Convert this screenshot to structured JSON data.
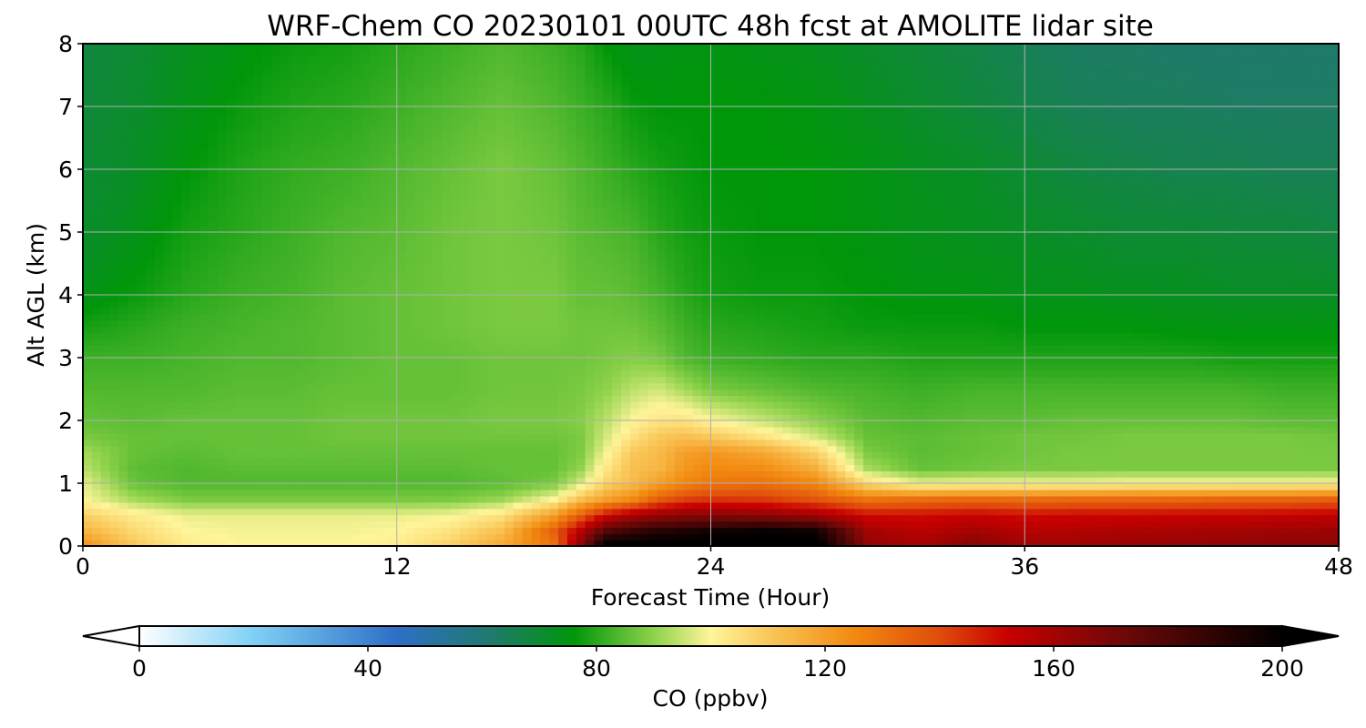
{
  "chart_data": {
    "type": "heatmap",
    "title": "WRF-Chem CO  20230101 00UTC 48h fcst at AMOLITE lidar site",
    "xlabel": "Forecast Time (Hour)",
    "ylabel": "Alt AGL (km)",
    "xlim": [
      0,
      48
    ],
    "ylim": [
      0,
      8
    ],
    "x_ticks": [
      "0",
      "12",
      "24",
      "36",
      "48"
    ],
    "y_ticks": [
      "0",
      "1",
      "2",
      "3",
      "4",
      "5",
      "6",
      "7",
      "8"
    ],
    "grid": true,
    "colorbar": {
      "label": "CO  (ppbv)",
      "range": [
        0,
        200
      ],
      "extend": "both",
      "ticks": [
        "0",
        "40",
        "80",
        "120",
        "160",
        "200"
      ],
      "stops": [
        {
          "value": 0,
          "color": "#ffffff"
        },
        {
          "value": 20,
          "color": "#7fd0f5"
        },
        {
          "value": 45,
          "color": "#2e6fc7"
        },
        {
          "value": 62,
          "color": "#1f7a6a"
        },
        {
          "value": 76,
          "color": "#00960a"
        },
        {
          "value": 90,
          "color": "#8ed24a"
        },
        {
          "value": 100,
          "color": "#fff59a"
        },
        {
          "value": 110,
          "color": "#f9c85a"
        },
        {
          "value": 125,
          "color": "#f28a10"
        },
        {
          "value": 140,
          "color": "#e04c0c"
        },
        {
          "value": 152,
          "color": "#c80000"
        },
        {
          "value": 172,
          "color": "#6e0808"
        },
        {
          "value": 200,
          "color": "#000000"
        }
      ]
    },
    "z_times": [
      0,
      2,
      4,
      6,
      8,
      10,
      12,
      14,
      16,
      18,
      19,
      20,
      21,
      22,
      23,
      24,
      26,
      28,
      30,
      32,
      34,
      36,
      38,
      40,
      42,
      44,
      46,
      48
    ],
    "z_altitudes": [
      0,
      0.25,
      0.5,
      0.75,
      1,
      1.25,
      1.5,
      1.75,
      2,
      2.5,
      3,
      3.5,
      4,
      5,
      6,
      7,
      8
    ],
    "z_values": [
      [
        124,
        110,
        102,
        100,
        100,
        100,
        102,
        108,
        118,
        130,
        165,
        205,
        205,
        205,
        205,
        205,
        205,
        205,
        165,
        160,
        168,
        162,
        162,
        163,
        164,
        165,
        166,
        166
      ],
      [
        115,
        106,
        100,
        99,
        99,
        99,
        100,
        104,
        112,
        135,
        155,
        178,
        185,
        190,
        192,
        195,
        198,
        196,
        160,
        155,
        160,
        156,
        157,
        158,
        159,
        160,
        161,
        162
      ],
      [
        108,
        102,
        98,
        98,
        98,
        98,
        98,
        99,
        104,
        120,
        135,
        150,
        158,
        163,
        165,
        166,
        165,
        160,
        150,
        150,
        152,
        150,
        151,
        151,
        152,
        152,
        153,
        154
      ],
      [
        100,
        92,
        88,
        88,
        88,
        88,
        88,
        88,
        91,
        100,
        112,
        120,
        125,
        136,
        142,
        144,
        143,
        138,
        130,
        132,
        133,
        132,
        133,
        133,
        133,
        134,
        134,
        135
      ],
      [
        98,
        86,
        84,
        84,
        84,
        84,
        84,
        84,
        85,
        88,
        96,
        108,
        113,
        120,
        126,
        130,
        131,
        126,
        106,
        98,
        99,
        99,
        99,
        100,
        100,
        100,
        100,
        100
      ],
      [
        94,
        85,
        84,
        85,
        85,
        85,
        85,
        85,
        86,
        86,
        90,
        103,
        112,
        114,
        122,
        125,
        124,
        116,
        92,
        86,
        87,
        88,
        88,
        88,
        88,
        88,
        88,
        88
      ],
      [
        92,
        86,
        85,
        86,
        86,
        86,
        86,
        86,
        86,
        86,
        88,
        99,
        110,
        113,
        120,
        122,
        118,
        108,
        88,
        85,
        86,
        87,
        88,
        88,
        88,
        88,
        88,
        88
      ],
      [
        88,
        86,
        86,
        86,
        86,
        87,
        87,
        87,
        87,
        87,
        88,
        96,
        104,
        110,
        112,
        110,
        104,
        96,
        86,
        85,
        86,
        87,
        87,
        88,
        88,
        88,
        88,
        87
      ],
      [
        86,
        85,
        86,
        86,
        86,
        87,
        87,
        87,
        88,
        88,
        89,
        94,
        100,
        104,
        104,
        100,
        95,
        90,
        85,
        84,
        85,
        85,
        86,
        86,
        86,
        86,
        85,
        85
      ],
      [
        84,
        84,
        84,
        85,
        85,
        86,
        86,
        86,
        87,
        87,
        88,
        90,
        94,
        96,
        92,
        88,
        86,
        84,
        83,
        82,
        83,
        83,
        83,
        83,
        83,
        83,
        82,
        82
      ],
      [
        82,
        82,
        83,
        84,
        84,
        85,
        86,
        86,
        87,
        87,
        87,
        88,
        89,
        88,
        84,
        82,
        81,
        80,
        80,
        79,
        79,
        79,
        79,
        79,
        79,
        78,
        78,
        78
      ],
      [
        78,
        80,
        82,
        83,
        84,
        85,
        86,
        87,
        88,
        88,
        87,
        87,
        87,
        85,
        82,
        80,
        79,
        78,
        77,
        77,
        77,
        76,
        76,
        76,
        75,
        75,
        75,
        75
      ],
      [
        74,
        77,
        80,
        82,
        83,
        85,
        86,
        87,
        88,
        88,
        86,
        86,
        85,
        83,
        80,
        78,
        77,
        77,
        76,
        75,
        75,
        74,
        74,
        73,
        73,
        72,
        72,
        72
      ],
      [
        71,
        74,
        78,
        80,
        82,
        84,
        85,
        87,
        88,
        87,
        85,
        84,
        83,
        80,
        78,
        77,
        76,
        76,
        75,
        74,
        73,
        72,
        71,
        70,
        70,
        69,
        69,
        68
      ],
      [
        70,
        72,
        76,
        79,
        81,
        82,
        84,
        86,
        88,
        86,
        84,
        82,
        80,
        78,
        77,
        76,
        76,
        76,
        75,
        73,
        72,
        70,
        68,
        67,
        66,
        66,
        65,
        65
      ],
      [
        69,
        71,
        74,
        77,
        79,
        80,
        82,
        84,
        86,
        84,
        82,
        80,
        77,
        76,
        76,
        76,
        76,
        75,
        73,
        71,
        69,
        67,
        65,
        64,
        64,
        63,
        63,
        63
      ],
      [
        68,
        70,
        73,
        75,
        77,
        78,
        80,
        82,
        84,
        82,
        80,
        76,
        74,
        74,
        75,
        75,
        74,
        73,
        71,
        69,
        67,
        65,
        63,
        63,
        62,
        62,
        62,
        62
      ]
    ]
  }
}
